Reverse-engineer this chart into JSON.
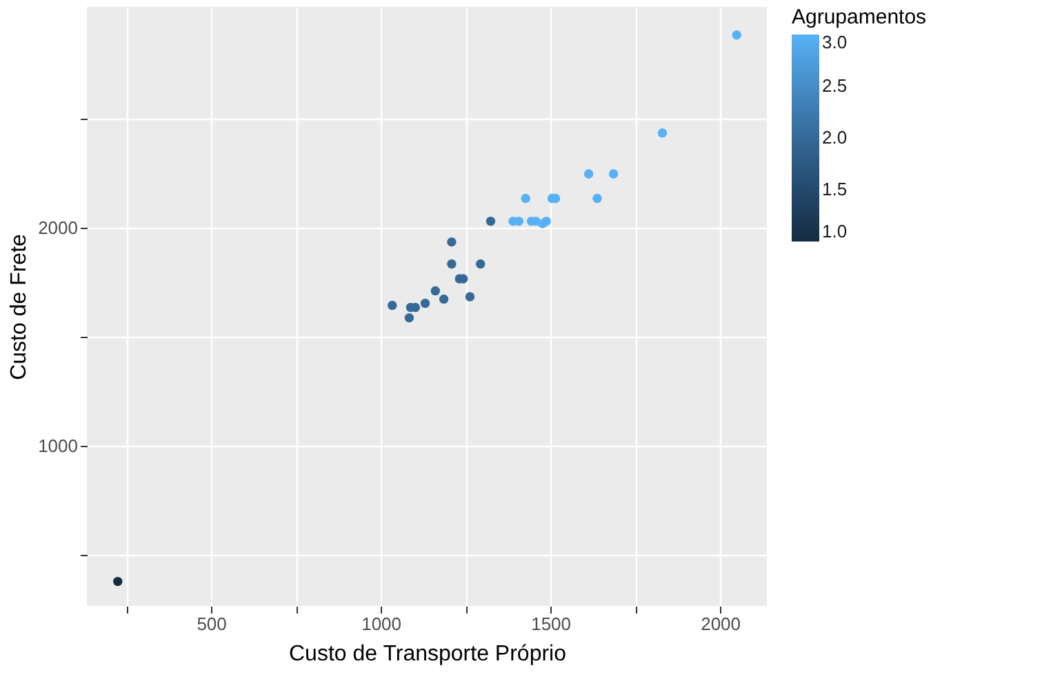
{
  "chart_data": {
    "type": "scatter",
    "xlabel": "Custo de Transporte Próprio",
    "ylabel": "Custo de Frete",
    "clabel": "Agrupamentos",
    "x": [
      225,
      1034,
      1084,
      1088,
      1102,
      1131,
      1161,
      1186,
      1209,
      1209,
      1232,
      1243,
      1263,
      1294,
      1324,
      1390,
      1407,
      1444,
      1457,
      1477,
      1488,
      1427,
      1505,
      1515,
      1613,
      1686,
      1638,
      1830,
      2049
    ],
    "values": [
      378,
      1644,
      1587,
      1635,
      1635,
      1654,
      1711,
      1673,
      1935,
      1834,
      1766,
      1766,
      1684,
      1834,
      2030,
      2030,
      2030,
      2030,
      2030,
      2019,
      2030,
      2135,
      2135,
      2135,
      2247,
      2247,
      2135,
      2435,
      2884
    ],
    "cvalues": [
      1,
      2,
      2,
      2,
      2,
      2,
      2,
      2,
      2,
      2,
      2,
      2,
      2,
      2,
      2,
      3,
      3,
      3,
      3,
      3,
      3,
      3,
      3,
      3,
      3,
      3,
      3,
      3,
      3
    ],
    "colors": [
      "#132b43",
      "#356e9d",
      "#356e9d",
      "#356e9d",
      "#356e9d",
      "#356e9d",
      "#356e9d",
      "#356e9d",
      "#356e9d",
      "#356e9d",
      "#356e9d",
      "#356e9d",
      "#356e9d",
      "#356e9d",
      "#356e9d",
      "#56b1f7",
      "#56b1f7",
      "#56b1f7",
      "#56b1f7",
      "#56b1f7",
      "#56b1f7",
      "#56b1f7",
      "#56b1f7",
      "#56b1f7",
      "#56b1f7",
      "#56b1f7",
      "#56b1f7",
      "#56b1f7",
      "#56b1f7"
    ],
    "clim": [
      1,
      3
    ],
    "cticks": [
      {
        "value": 1,
        "label": "1.0"
      },
      {
        "value": 1.5,
        "label": "1.5"
      },
      {
        "value": 2,
        "label": "2.0"
      },
      {
        "value": 2.5,
        "label": "2.5"
      },
      {
        "value": 3,
        "label": "3.0"
      }
    ],
    "xlim": [
      134,
      2138
    ],
    "ylim": [
      266,
      3013
    ],
    "xticks": [
      {
        "value": 250,
        "label": null
      },
      500,
      {
        "value": 750,
        "label": null
      },
      1000,
      {
        "value": 1250,
        "label": null
      },
      1500,
      {
        "value": 1750,
        "label": null
      },
      2000
    ],
    "yticks": [
      {
        "value": 500,
        "label": null
      },
      1000,
      {
        "value": 1500,
        "label": null
      },
      2000,
      {
        "value": 2500,
        "label": null
      }
    ],
    "grid": true
  }
}
